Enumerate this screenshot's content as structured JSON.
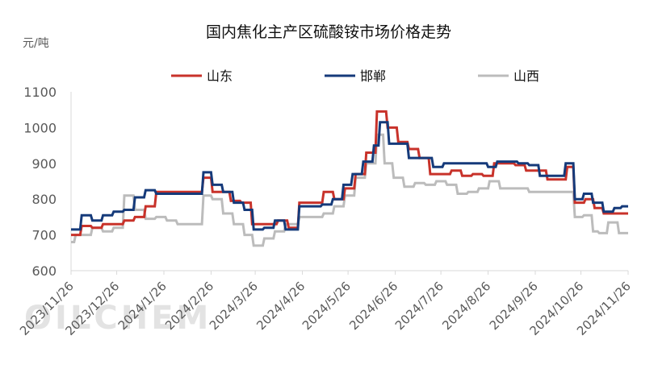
{
  "chart_data": {
    "type": "line",
    "title": "国内焦化主产区硫酸铵市场价格走势",
    "unit": "元/吨",
    "watermark": "OILCHEM",
    "ylim": [
      600,
      1100
    ],
    "yticks": [
      600,
      700,
      800,
      900,
      1000,
      1100
    ],
    "xlim": [
      "2023/11/26",
      "2024/11/26"
    ],
    "xticks": [
      "2023/11/26",
      "2023/12/26",
      "2024/1/26",
      "2024/2/26",
      "2024/3/26",
      "2024/4/26",
      "2024/5/26",
      "2024/6/26",
      "2024/7/26",
      "2024/8/26",
      "2024/9/26",
      "2024/10/26",
      "2024/11/26"
    ],
    "grid": "none",
    "legend_position": "top",
    "series": [
      {
        "name": "山东",
        "color": "#c8322a",
        "points": [
          [
            "2023/11/26",
            700
          ],
          [
            "2023/12/2",
            700
          ],
          [
            "2023/12/3",
            725
          ],
          [
            "2023/12/9",
            725
          ],
          [
            "2023/12/10",
            720
          ],
          [
            "2023/12/16",
            720
          ],
          [
            "2023/12/17",
            730
          ],
          [
            "2023/12/30",
            730
          ],
          [
            "2023/12/31",
            740
          ],
          [
            "2024/1/6",
            740
          ],
          [
            "2024/1/7",
            750
          ],
          [
            "2024/1/13",
            750
          ],
          [
            "2024/1/14",
            780
          ],
          [
            "2024/1/20",
            780
          ],
          [
            "2024/1/21",
            820
          ],
          [
            "2024/2/20",
            820
          ],
          [
            "2024/2/21",
            860
          ],
          [
            "2024/2/26",
            860
          ],
          [
            "2024/2/27",
            820
          ],
          [
            "2024/3/9",
            820
          ],
          [
            "2024/3/10",
            795
          ],
          [
            "2024/3/16",
            795
          ],
          [
            "2024/3/17",
            790
          ],
          [
            "2024/3/23",
            790
          ],
          [
            "2024/3/24",
            730
          ],
          [
            "2024/4/9",
            730
          ],
          [
            "2024/4/10",
            740
          ],
          [
            "2024/4/16",
            740
          ],
          [
            "2024/4/17",
            720
          ],
          [
            "2024/4/23",
            720
          ],
          [
            "2024/4/24",
            790
          ],
          [
            "2024/5/9",
            790
          ],
          [
            "2024/5/10",
            820
          ],
          [
            "2024/5/16",
            820
          ],
          [
            "2024/5/17",
            800
          ],
          [
            "2024/5/23",
            800
          ],
          [
            "2024/5/24",
            830
          ],
          [
            "2024/5/30",
            830
          ],
          [
            "2024/5/31",
            870
          ],
          [
            "2024/6/6",
            870
          ],
          [
            "2024/6/7",
            930
          ],
          [
            "2024/6/13",
            930
          ],
          [
            "2024/6/14",
            1045
          ],
          [
            "2024/6/20",
            1045
          ],
          [
            "2024/6/21",
            1000
          ],
          [
            "2024/6/27",
            1000
          ],
          [
            "2024/6/28",
            960
          ],
          [
            "2024/7/4",
            960
          ],
          [
            "2024/7/5",
            940
          ],
          [
            "2024/7/11",
            940
          ],
          [
            "2024/7/12",
            915
          ],
          [
            "2024/7/18",
            915
          ],
          [
            "2024/7/19",
            870
          ],
          [
            "2024/8/1",
            870
          ],
          [
            "2024/8/2",
            880
          ],
          [
            "2024/8/8",
            880
          ],
          [
            "2024/8/9",
            865
          ],
          [
            "2024/8/15",
            865
          ],
          [
            "2024/8/16",
            870
          ],
          [
            "2024/8/22",
            870
          ],
          [
            "2024/8/23",
            865
          ],
          [
            "2024/8/29",
            865
          ],
          [
            "2024/8/30",
            900
          ],
          [
            "2024/9/12",
            900
          ],
          [
            "2024/9/13",
            895
          ],
          [
            "2024/9/19",
            895
          ],
          [
            "2024/9/20",
            880
          ],
          [
            "2024/10/3",
            880
          ],
          [
            "2024/10/4",
            855
          ],
          [
            "2024/10/16",
            855
          ],
          [
            "2024/10/17",
            890
          ],
          [
            "2024/10/21",
            890
          ],
          [
            "2024/10/22",
            790
          ],
          [
            "2024/10/28",
            790
          ],
          [
            "2024/10/29",
            800
          ],
          [
            "2024/11/3",
            800
          ],
          [
            "2024/11/4",
            775
          ],
          [
            "2024/11/9",
            775
          ],
          [
            "2024/11/10",
            760
          ],
          [
            "2024/11/26",
            760
          ]
        ]
      },
      {
        "name": "邯郸",
        "color": "#153a7a",
        "points": [
          [
            "2023/11/26",
            715
          ],
          [
            "2023/12/2",
            715
          ],
          [
            "2023/12/3",
            755
          ],
          [
            "2023/12/9",
            755
          ],
          [
            "2023/12/10",
            740
          ],
          [
            "2023/12/16",
            740
          ],
          [
            "2023/12/17",
            755
          ],
          [
            "2023/12/23",
            755
          ],
          [
            "2023/12/24",
            765
          ],
          [
            "2023/12/30",
            765
          ],
          [
            "2023/12/31",
            770
          ],
          [
            "2024/1/6",
            770
          ],
          [
            "2024/1/7",
            805
          ],
          [
            "2024/1/13",
            805
          ],
          [
            "2024/1/14",
            825
          ],
          [
            "2024/1/20",
            825
          ],
          [
            "2024/1/21",
            815
          ],
          [
            "2024/2/20",
            815
          ],
          [
            "2024/2/21",
            875
          ],
          [
            "2024/2/26",
            875
          ],
          [
            "2024/2/27",
            840
          ],
          [
            "2024/3/4",
            840
          ],
          [
            "2024/3/5",
            820
          ],
          [
            "2024/3/11",
            820
          ],
          [
            "2024/3/12",
            790
          ],
          [
            "2024/3/18",
            790
          ],
          [
            "2024/3/19",
            770
          ],
          [
            "2024/3/24",
            770
          ],
          [
            "2024/3/25",
            715
          ],
          [
            "2024/3/31",
            715
          ],
          [
            "2024/4/1",
            720
          ],
          [
            "2024/4/7",
            720
          ],
          [
            "2024/4/8",
            740
          ],
          [
            "2024/4/14",
            740
          ],
          [
            "2024/4/15",
            715
          ],
          [
            "2024/4/23",
            715
          ],
          [
            "2024/4/24",
            780
          ],
          [
            "2024/5/8",
            780
          ],
          [
            "2024/5/9",
            785
          ],
          [
            "2024/5/15",
            785
          ],
          [
            "2024/5/16",
            800
          ],
          [
            "2024/5/22",
            800
          ],
          [
            "2024/5/23",
            840
          ],
          [
            "2024/5/28",
            840
          ],
          [
            "2024/5/29",
            870
          ],
          [
            "2024/6/4",
            870
          ],
          [
            "2024/6/5",
            905
          ],
          [
            "2024/6/11",
            905
          ],
          [
            "2024/6/12",
            950
          ],
          [
            "2024/6/15",
            950
          ],
          [
            "2024/6/16",
            1015
          ],
          [
            "2024/6/21",
            1015
          ],
          [
            "2024/6/22",
            955
          ],
          [
            "2024/7/4",
            955
          ],
          [
            "2024/7/5",
            915
          ],
          [
            "2024/7/20",
            915
          ],
          [
            "2024/7/21",
            890
          ],
          [
            "2024/7/27",
            890
          ],
          [
            "2024/7/28",
            900
          ],
          [
            "2024/8/25",
            900
          ],
          [
            "2024/8/26",
            890
          ],
          [
            "2024/8/31",
            890
          ],
          [
            "2024/9/1",
            905
          ],
          [
            "2024/9/14",
            905
          ],
          [
            "2024/9/15",
            900
          ],
          [
            "2024/9/21",
            900
          ],
          [
            "2024/9/22",
            895
          ],
          [
            "2024/9/28",
            895
          ],
          [
            "2024/9/29",
            865
          ],
          [
            "2024/10/15",
            865
          ],
          [
            "2024/10/16",
            900
          ],
          [
            "2024/10/21",
            900
          ],
          [
            "2024/10/22",
            800
          ],
          [
            "2024/10/27",
            800
          ],
          [
            "2024/10/28",
            815
          ],
          [
            "2024/11/2",
            815
          ],
          [
            "2024/11/3",
            790
          ],
          [
            "2024/11/9",
            790
          ],
          [
            "2024/11/10",
            765
          ],
          [
            "2024/11/16",
            765
          ],
          [
            "2024/11/17",
            775
          ],
          [
            "2024/11/21",
            775
          ],
          [
            "2024/11/22",
            780
          ],
          [
            "2024/11/26",
            780
          ]
        ]
      },
      {
        "name": "山西",
        "color": "#bcbcbc",
        "points": [
          [
            "2023/11/26",
            680
          ],
          [
            "2023/11/28",
            680
          ],
          [
            "2023/11/29",
            700
          ],
          [
            "2023/12/9",
            700
          ],
          [
            "2023/12/10",
            720
          ],
          [
            "2023/12/16",
            720
          ],
          [
            "2023/12/17",
            710
          ],
          [
            "2023/12/23",
            710
          ],
          [
            "2023/12/24",
            720
          ],
          [
            "2023/12/30",
            720
          ],
          [
            "2023/12/31",
            810
          ],
          [
            "2024/1/6",
            810
          ],
          [
            "2024/1/7",
            770
          ],
          [
            "2024/1/13",
            770
          ],
          [
            "2024/1/14",
            745
          ],
          [
            "2024/1/20",
            745
          ],
          [
            "2024/1/21",
            750
          ],
          [
            "2024/1/27",
            750
          ],
          [
            "2024/1/28",
            740
          ],
          [
            "2024/2/3",
            740
          ],
          [
            "2024/2/4",
            730
          ],
          [
            "2024/2/20",
            730
          ],
          [
            "2024/2/21",
            810
          ],
          [
            "2024/2/26",
            810
          ],
          [
            "2024/2/27",
            800
          ],
          [
            "2024/3/4",
            800
          ],
          [
            "2024/3/5",
            760
          ],
          [
            "2024/3/11",
            760
          ],
          [
            "2024/3/12",
            730
          ],
          [
            "2024/3/18",
            730
          ],
          [
            "2024/3/19",
            700
          ],
          [
            "2024/3/24",
            700
          ],
          [
            "2024/3/25",
            670
          ],
          [
            "2024/3/31",
            670
          ],
          [
            "2024/4/1",
            690
          ],
          [
            "2024/4/7",
            690
          ],
          [
            "2024/4/8",
            710
          ],
          [
            "2024/4/14",
            710
          ],
          [
            "2024/4/15",
            730
          ],
          [
            "2024/4/23",
            730
          ],
          [
            "2024/4/24",
            750
          ],
          [
            "2024/5/9",
            750
          ],
          [
            "2024/5/10",
            760
          ],
          [
            "2024/5/16",
            760
          ],
          [
            "2024/5/17",
            780
          ],
          [
            "2024/5/23",
            780
          ],
          [
            "2024/5/24",
            810
          ],
          [
            "2024/5/30",
            810
          ],
          [
            "2024/5/31",
            860
          ],
          [
            "2024/6/6",
            860
          ],
          [
            "2024/6/7",
            900
          ],
          [
            "2024/6/13",
            900
          ],
          [
            "2024/6/14",
            980
          ],
          [
            "2024/6/18",
            980
          ],
          [
            "2024/6/19",
            900
          ],
          [
            "2024/6/24",
            900
          ],
          [
            "2024/6/25",
            860
          ],
          [
            "2024/7/1",
            860
          ],
          [
            "2024/7/2",
            835
          ],
          [
            "2024/7/8",
            835
          ],
          [
            "2024/7/9",
            845
          ],
          [
            "2024/7/15",
            845
          ],
          [
            "2024/7/16",
            840
          ],
          [
            "2024/7/22",
            840
          ],
          [
            "2024/7/23",
            850
          ],
          [
            "2024/7/29",
            850
          ],
          [
            "2024/7/30",
            840
          ],
          [
            "2024/8/5",
            840
          ],
          [
            "2024/8/6",
            815
          ],
          [
            "2024/8/12",
            815
          ],
          [
            "2024/8/13",
            820
          ],
          [
            "2024/8/19",
            820
          ],
          [
            "2024/8/20",
            830
          ],
          [
            "2024/8/26",
            830
          ],
          [
            "2024/8/27",
            850
          ],
          [
            "2024/9/2",
            850
          ],
          [
            "2024/9/3",
            830
          ],
          [
            "2024/9/21",
            830
          ],
          [
            "2024/9/22",
            820
          ],
          [
            "2024/10/21",
            820
          ],
          [
            "2024/10/22",
            750
          ],
          [
            "2024/10/27",
            750
          ],
          [
            "2024/10/28",
            755
          ],
          [
            "2024/11/2",
            755
          ],
          [
            "2024/11/3",
            710
          ],
          [
            "2024/11/6",
            710
          ],
          [
            "2024/11/7",
            705
          ],
          [
            "2024/11/12",
            705
          ],
          [
            "2024/11/13",
            735
          ],
          [
            "2024/11/19",
            735
          ],
          [
            "2024/11/20",
            705
          ],
          [
            "2024/11/26",
            705
          ]
        ]
      }
    ]
  }
}
